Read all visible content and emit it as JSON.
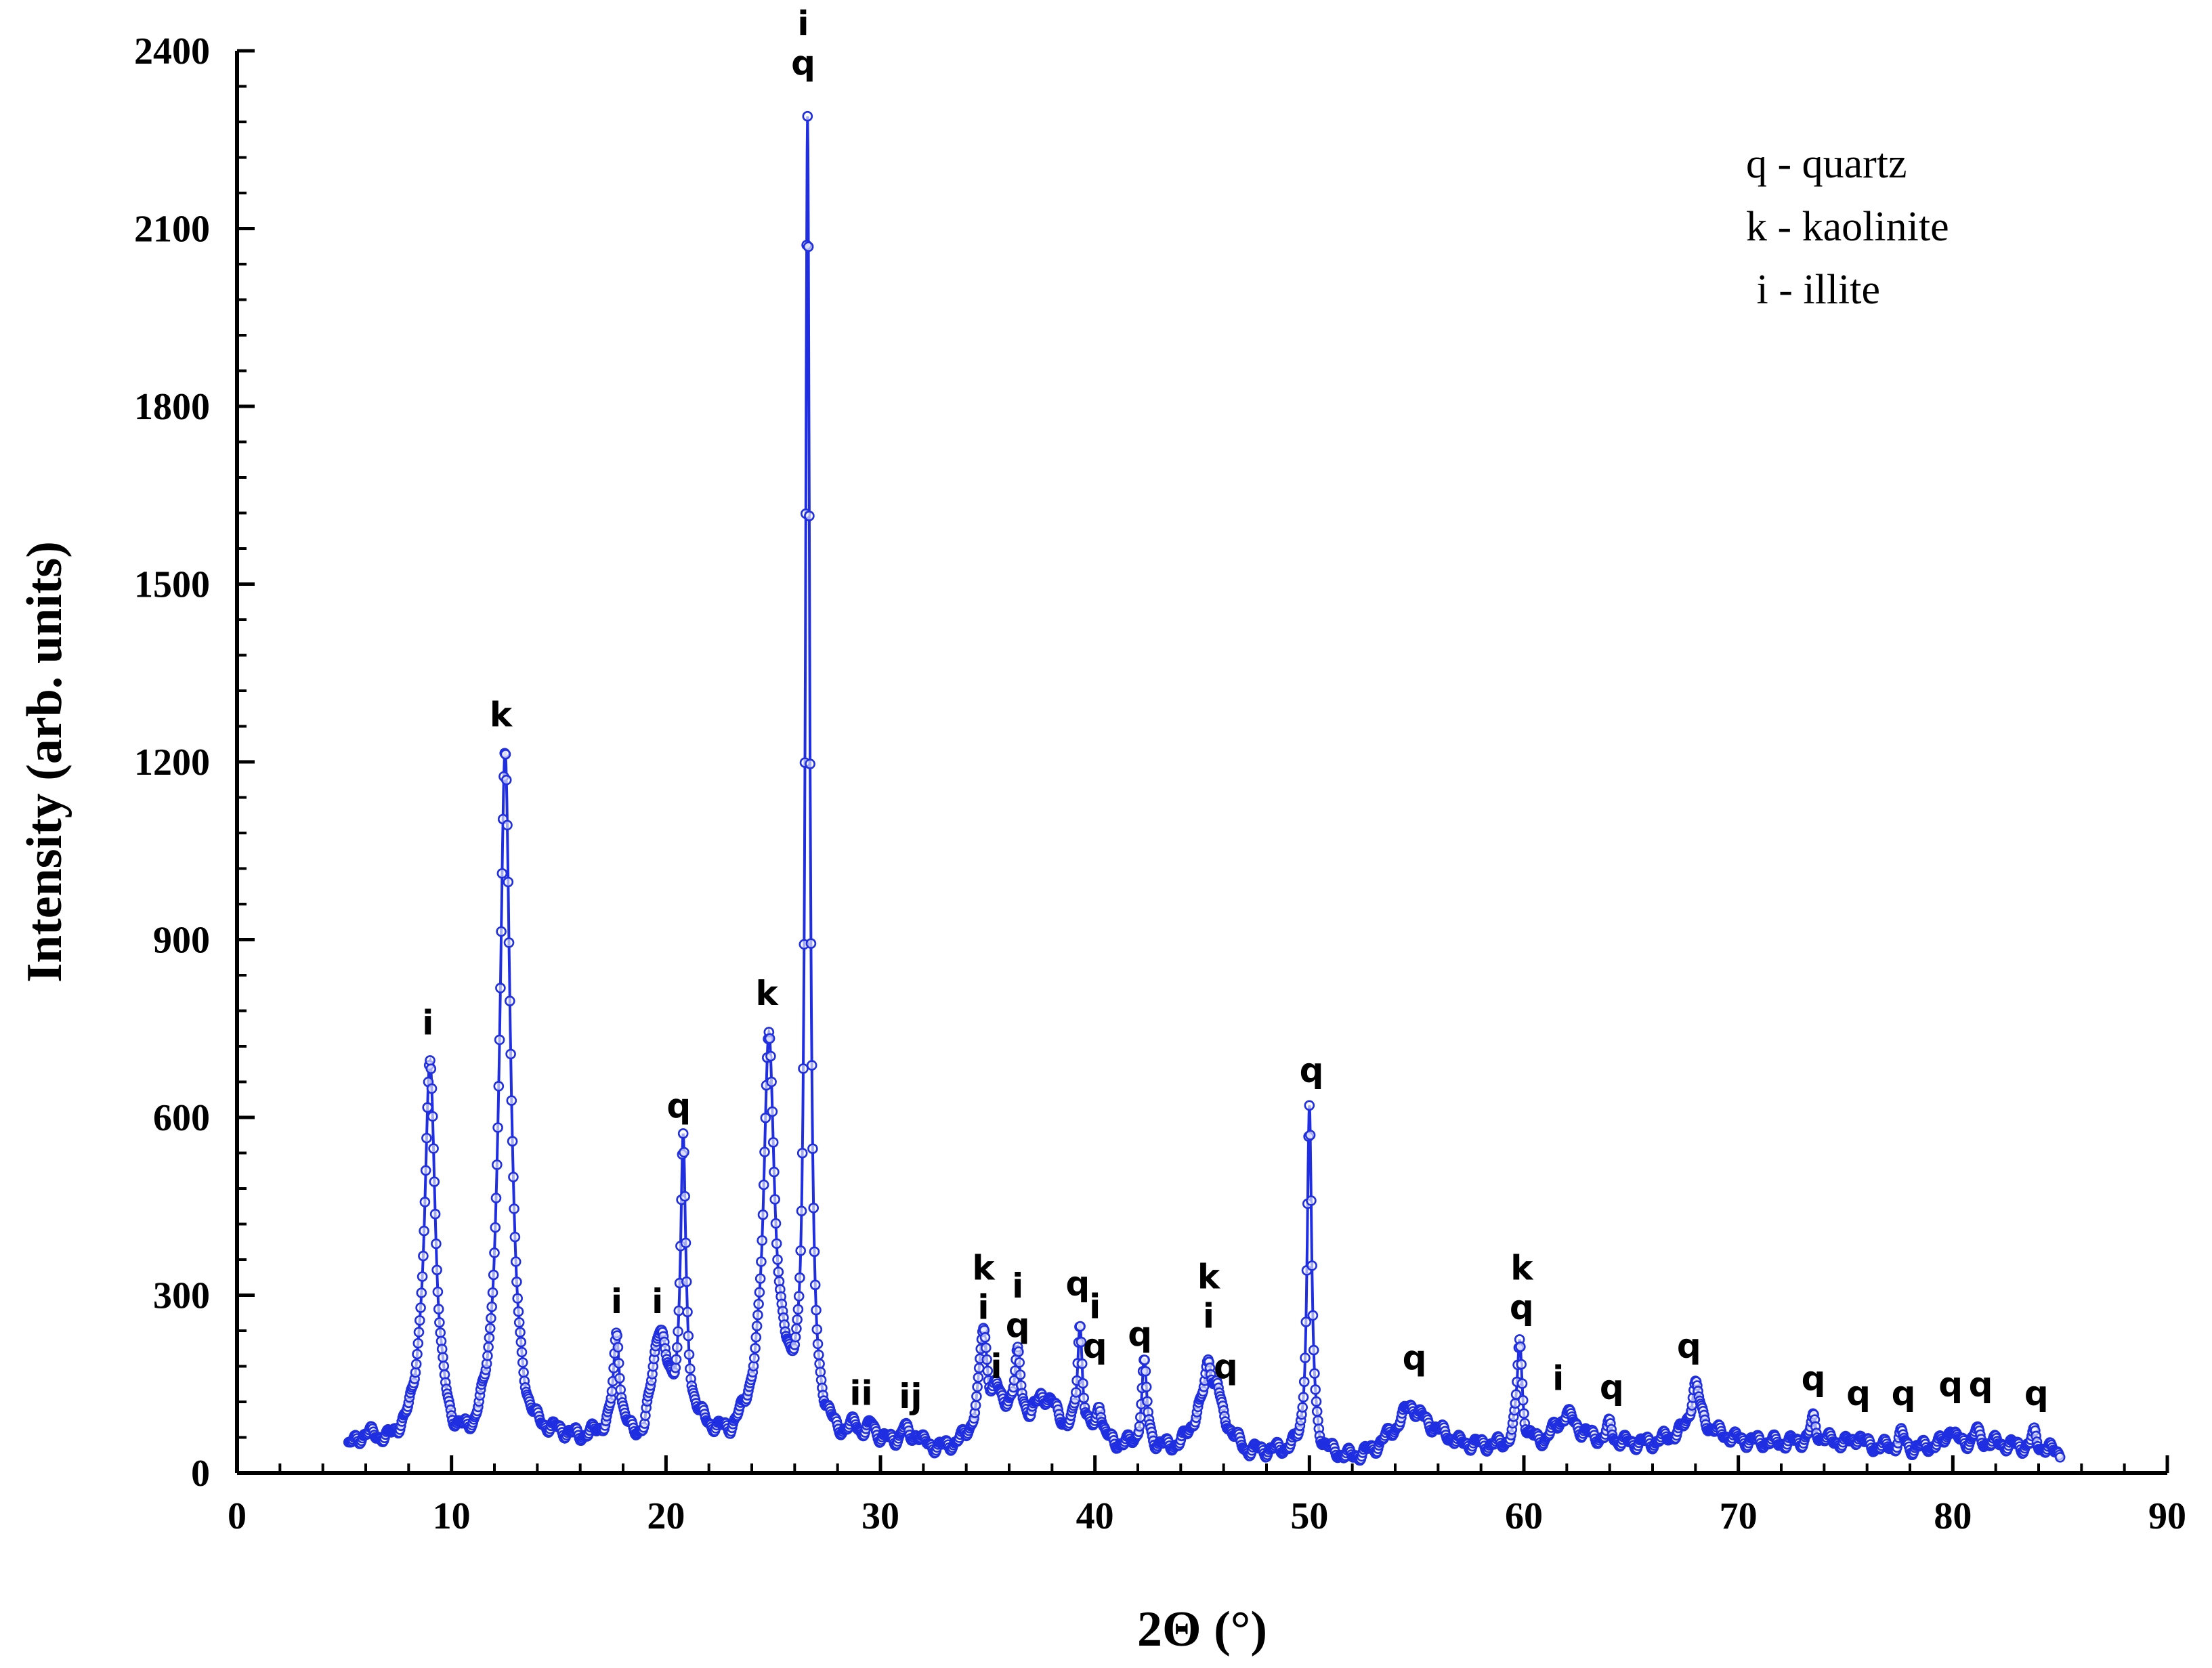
{
  "chart_data": {
    "type": "line",
    "title": "",
    "xlabel": "2Θ (°)",
    "ylabel": "Intensity (arb. units)",
    "xlim": [
      0,
      90
    ],
    "ylim": [
      0,
      2400
    ],
    "xticks": [
      0,
      10,
      20,
      30,
      40,
      50,
      60,
      70,
      80,
      90
    ],
    "yticks": [
      0,
      300,
      600,
      900,
      1200,
      1500,
      1800,
      2100,
      2400
    ],
    "xtick_labels": [
      "0",
      "10",
      "20",
      "30",
      "40",
      "50",
      "60",
      "70",
      "80",
      "90"
    ],
    "ytick_labels": [
      "0",
      "300",
      "600",
      "900",
      "1200",
      "1500",
      "1800",
      "2100",
      "2400"
    ],
    "grid": false,
    "series_color": "#1f2ee0",
    "background_level": [
      [
        5.2,
        40
      ],
      [
        6,
        60
      ],
      [
        7,
        45
      ],
      [
        8,
        60
      ],
      [
        8.6,
        110
      ],
      [
        9.4,
        70
      ],
      [
        10,
        35
      ],
      [
        11,
        30
      ],
      [
        12,
        70
      ],
      [
        13,
        40
      ],
      [
        14,
        45
      ],
      [
        15,
        55
      ],
      [
        16,
        50
      ],
      [
        17,
        60
      ],
      [
        18,
        55
      ],
      [
        19,
        40
      ],
      [
        19.6,
        140
      ],
      [
        20.2,
        110
      ],
      [
        21,
        100
      ],
      [
        22,
        65
      ],
      [
        23,
        55
      ],
      [
        24,
        90
      ],
      [
        25,
        130
      ],
      [
        25.5,
        160
      ],
      [
        26,
        90
      ],
      [
        27,
        80
      ],
      [
        28,
        55
      ],
      [
        30,
        50
      ],
      [
        32,
        40
      ],
      [
        33,
        38
      ],
      [
        34,
        50
      ],
      [
        35,
        80
      ],
      [
        36,
        110
      ],
      [
        37,
        90
      ],
      [
        37.5,
        130
      ],
      [
        38,
        115
      ],
      [
        38.7,
        70
      ],
      [
        40,
        55
      ],
      [
        41,
        45
      ],
      [
        43,
        40
      ],
      [
        44,
        45
      ],
      [
        45,
        100
      ],
      [
        46,
        80
      ],
      [
        47,
        35
      ],
      [
        49,
        35
      ],
      [
        51,
        30
      ],
      [
        52,
        25
      ],
      [
        53,
        40
      ],
      [
        54,
        75
      ],
      [
        54.7,
        115
      ],
      [
        55.5,
        85
      ],
      [
        57,
        50
      ],
      [
        59,
        45
      ],
      [
        61,
        55
      ],
      [
        62,
        100
      ],
      [
        62.7,
        70
      ],
      [
        64,
        50
      ],
      [
        66,
        50
      ],
      [
        67,
        60
      ],
      [
        68.5,
        70
      ],
      [
        70,
        55
      ],
      [
        72,
        50
      ],
      [
        74,
        55
      ],
      [
        76,
        45
      ],
      [
        78,
        40
      ],
      [
        80,
        50
      ],
      [
        82,
        50
      ],
      [
        84,
        40
      ],
      [
        85,
        35
      ]
    ],
    "peaks": [
      {
        "x": 9.0,
        "y": 690,
        "w": 0.28,
        "label": "i"
      },
      {
        "x": 12.5,
        "y": 1210,
        "w": 0.3,
        "label": "k"
      },
      {
        "x": 17.7,
        "y": 225,
        "w": 0.18,
        "label": "i"
      },
      {
        "x": 19.7,
        "y": 235,
        "w": 0.3,
        "label": "i"
      },
      {
        "x": 20.8,
        "y": 555,
        "w": 0.14,
        "label": "q"
      },
      {
        "x": 24.8,
        "y": 745,
        "w": 0.28,
        "label": "k"
      },
      {
        "x": 26.6,
        "y": 2280,
        "w": 0.12,
        "label": "q"
      },
      {
        "x": 28.8,
        "y": 75,
        "w": 0.2,
        "label": "i"
      },
      {
        "x": 29.6,
        "y": 75,
        "w": 0.2,
        "label": "i"
      },
      {
        "x": 31.1,
        "y": 70,
        "w": 0.2,
        "label": "i"
      },
      {
        "x": 31.7,
        "y": 60,
        "w": 0.2,
        "label": "i"
      },
      {
        "x": 34.8,
        "y": 235,
        "w": 0.22,
        "label": "k"
      },
      {
        "x": 35.4,
        "y": 130,
        "w": 0.2,
        "label": "i"
      },
      {
        "x": 36.4,
        "y": 195,
        "w": 0.16,
        "label": "q"
      },
      {
        "x": 39.3,
        "y": 250,
        "w": 0.14,
        "label": "q"
      },
      {
        "x": 40.2,
        "y": 115,
        "w": 0.14,
        "label": "q"
      },
      {
        "x": 42.3,
        "y": 180,
        "w": 0.15,
        "label": "q"
      },
      {
        "x": 45.3,
        "y": 190,
        "w": 0.2,
        "label": "k"
      },
      {
        "x": 45.7,
        "y": 130,
        "w": 0.15,
        "label": "q"
      },
      {
        "x": 50.0,
        "y": 610,
        "w": 0.13,
        "label": "q"
      },
      {
        "x": 59.8,
        "y": 225,
        "w": 0.14,
        "label": "k"
      },
      {
        "x": 64.0,
        "y": 80,
        "w": 0.15,
        "label": "q"
      },
      {
        "x": 68.0,
        "y": 150,
        "w": 0.25,
        "label": "q"
      },
      {
        "x": 73.5,
        "y": 90,
        "w": 0.15,
        "label": "q"
      },
      {
        "x": 75.6,
        "y": 65,
        "w": 0.15,
        "label": "q"
      },
      {
        "x": 77.6,
        "y": 65,
        "w": 0.15,
        "label": "q"
      },
      {
        "x": 79.9,
        "y": 80,
        "w": 0.15,
        "label": "q"
      },
      {
        "x": 81.1,
        "y": 70,
        "w": 0.15,
        "label": "q"
      },
      {
        "x": 83.8,
        "y": 65,
        "w": 0.15,
        "label": "q"
      }
    ],
    "peak_annotations": [
      {
        "x": 8.9,
        "y": 740,
        "lines": [
          "i"
        ]
      },
      {
        "x": 12.3,
        "y": 1260,
        "lines": [
          "k"
        ]
      },
      {
        "x": 17.7,
        "y": 270,
        "lines": [
          "i"
        ]
      },
      {
        "x": 19.6,
        "y": 270,
        "lines": [
          "i"
        ]
      },
      {
        "x": 20.6,
        "y": 600,
        "lines": [
          "q"
        ]
      },
      {
        "x": 24.7,
        "y": 790,
        "lines": [
          "k"
        ]
      },
      {
        "x": 26.4,
        "y": 2360,
        "lines": [
          "i",
          "q"
        ]
      },
      {
        "x": 29.1,
        "y": 115,
        "lines": [
          "ii"
        ]
      },
      {
        "x": 31.4,
        "y": 110,
        "lines": [
          "ij"
        ]
      },
      {
        "x": 34.8,
        "y": 260,
        "lines": [
          "k",
          "i"
        ]
      },
      {
        "x": 35.4,
        "y": 160,
        "lines": [
          "i"
        ]
      },
      {
        "x": 36.4,
        "y": 230,
        "lines": [
          "i",
          "q"
        ]
      },
      {
        "x": 39.2,
        "y": 300,
        "lines": [
          "q"
        ]
      },
      {
        "x": 40.0,
        "y": 195,
        "lines": [
          "i",
          "q"
        ]
      },
      {
        "x": 42.1,
        "y": 215,
        "lines": [
          "q"
        ]
      },
      {
        "x": 45.3,
        "y": 245,
        "lines": [
          "k",
          "i"
        ]
      },
      {
        "x": 46.1,
        "y": 160,
        "lines": [
          "q"
        ]
      },
      {
        "x": 50.1,
        "y": 660,
        "lines": [
          "q"
        ]
      },
      {
        "x": 54.9,
        "y": 175,
        "lines": [
          "q"
        ]
      },
      {
        "x": 59.9,
        "y": 260,
        "lines": [
          "k",
          "q"
        ]
      },
      {
        "x": 61.6,
        "y": 140,
        "lines": [
          "i"
        ]
      },
      {
        "x": 64.1,
        "y": 125,
        "lines": [
          "q"
        ]
      },
      {
        "x": 67.7,
        "y": 195,
        "lines": [
          "q"
        ]
      },
      {
        "x": 73.5,
        "y": 140,
        "lines": [
          "q"
        ]
      },
      {
        "x": 75.6,
        "y": 115,
        "lines": [
          "q"
        ]
      },
      {
        "x": 77.7,
        "y": 115,
        "lines": [
          "q"
        ]
      },
      {
        "x": 79.9,
        "y": 130,
        "lines": [
          "q"
        ]
      },
      {
        "x": 81.3,
        "y": 130,
        "lines": [
          "q"
        ]
      },
      {
        "x": 83.9,
        "y": 115,
        "lines": [
          "q"
        ]
      }
    ],
    "legend_entries": [
      "q - quartz",
      "k - kaolinite",
      " i - illite"
    ],
    "legend_position": "top-right"
  }
}
